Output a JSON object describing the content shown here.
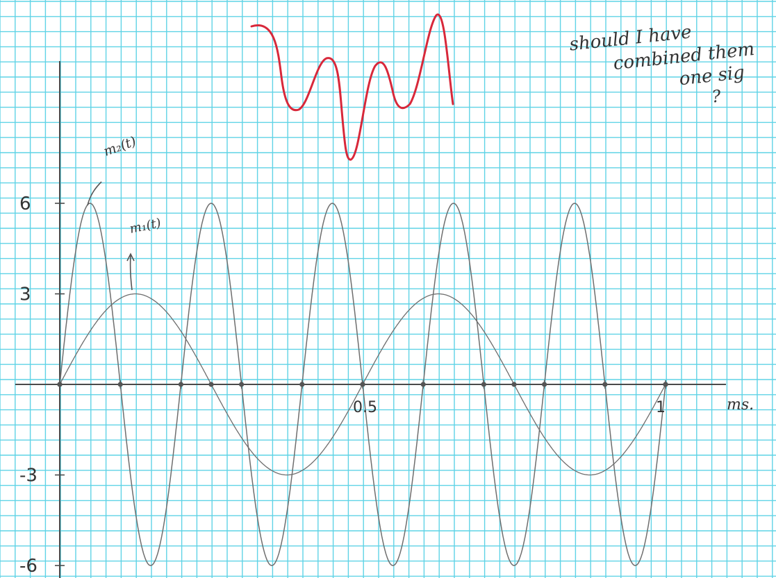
{
  "colors": {
    "grid": "#5fd3e6",
    "axis": "#4a4a4a",
    "pencil": "#6e6e6e",
    "red_sketch": "#d8283a",
    "paper": "#ffffff"
  },
  "chart_data": {
    "type": "line",
    "title": "",
    "xlabel": "ms.",
    "ylabel": "",
    "xlim": [
      0,
      1
    ],
    "ylim": [
      -6,
      6
    ],
    "x_tick_labels": [
      {
        "x": 0.5,
        "label": "0.5"
      },
      {
        "x": 1,
        "label": "1"
      }
    ],
    "y_tick_labels": [
      {
        "y": 6,
        "label": "6"
      },
      {
        "y": 3,
        "label": "3"
      },
      {
        "y": -3,
        "label": "-3"
      },
      {
        "y": -6,
        "label": "-6"
      }
    ],
    "grid": true,
    "series": [
      {
        "name": "m₂(t)",
        "function": "6*sin(2*pi*5*t)",
        "amplitude": 6,
        "frequency_cycles": 5,
        "x": [
          0,
          0.05,
          0.1,
          0.15,
          0.2,
          0.25,
          0.3,
          0.35,
          0.4,
          0.45,
          0.5,
          0.55,
          0.6,
          0.65,
          0.7,
          0.75,
          0.8,
          0.85,
          0.9,
          0.95,
          1.0
        ],
        "y": [
          0,
          6,
          0,
          -6,
          0,
          6,
          0,
          -6,
          0,
          6,
          0,
          -6,
          0,
          6,
          0,
          -6,
          0,
          6,
          0,
          -6,
          0
        ]
      },
      {
        "name": "m₁(t)",
        "function": "3*sin(2*pi*2*t)",
        "amplitude": 3,
        "frequency_cycles": 2,
        "x": [
          0,
          0.125,
          0.25,
          0.375,
          0.5,
          0.625,
          0.75,
          0.875,
          1.0
        ],
        "y": [
          0,
          3,
          0,
          -3,
          0,
          3,
          0,
          -3,
          0
        ]
      }
    ],
    "annotations": [
      {
        "text": "m₂(t)",
        "points_to": "m₂(t)"
      },
      {
        "text": "m₁(t)",
        "points_to": "m₁(t)"
      },
      {
        "text": "should I have combined them one sig ?",
        "type": "handwritten note"
      }
    ]
  },
  "note": {
    "lines": [
      "should I have",
      "combined them",
      "one sig",
      "?"
    ]
  }
}
